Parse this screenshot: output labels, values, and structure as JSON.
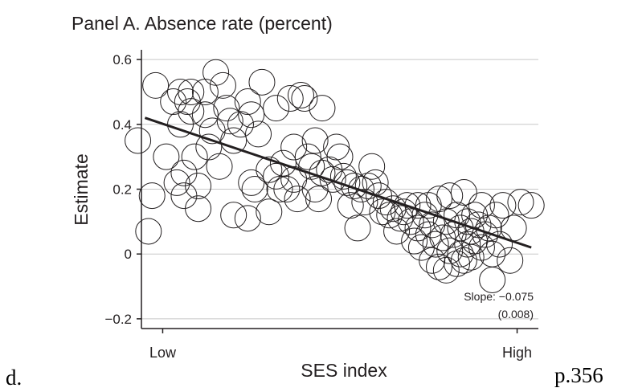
{
  "chart_data": {
    "type": "scatter",
    "title": "Panel A. Absence rate (percent)",
    "xlabel": "SES index",
    "ylabel": "Estimate",
    "x_tick_labels": [
      "Low",
      "High"
    ],
    "y_ticks": [
      -0.2,
      0,
      0.2,
      0.4,
      0.6
    ],
    "y_tick_labels": [
      "−0.2",
      "0",
      "0.2",
      "0.4",
      "0.6"
    ],
    "xlim": [
      -0.06,
      1.06
    ],
    "ylim": [
      -0.23,
      0.63
    ],
    "grid": true,
    "marker": "hollow-circle",
    "points": [
      [
        -0.07,
        0.35
      ],
      [
        -0.02,
        0.52
      ],
      [
        -0.03,
        0.18
      ],
      [
        -0.04,
        0.07
      ],
      [
        0.01,
        0.3
      ],
      [
        0.03,
        0.47
      ],
      [
        0.04,
        0.22
      ],
      [
        0.05,
        0.5
      ],
      [
        0.05,
        0.4
      ],
      [
        0.07,
        0.47
      ],
      [
        0.08,
        0.44
      ],
      [
        0.08,
        0.5
      ],
      [
        0.06,
        0.25
      ],
      [
        0.06,
        0.18
      ],
      [
        0.09,
        0.3
      ],
      [
        0.1,
        0.21
      ],
      [
        0.1,
        0.14
      ],
      [
        0.12,
        0.43
      ],
      [
        0.12,
        0.5
      ],
      [
        0.13,
        0.33
      ],
      [
        0.14,
        0.38
      ],
      [
        0.15,
        0.56
      ],
      [
        0.16,
        0.27
      ],
      [
        0.17,
        0.52
      ],
      [
        0.18,
        0.45
      ],
      [
        0.19,
        0.41
      ],
      [
        0.2,
        0.35
      ],
      [
        0.2,
        0.12
      ],
      [
        0.22,
        0.4
      ],
      [
        0.24,
        0.47
      ],
      [
        0.24,
        0.11
      ],
      [
        0.25,
        0.43
      ],
      [
        0.25,
        0.22
      ],
      [
        0.26,
        0.2
      ],
      [
        0.27,
        0.37
      ],
      [
        0.28,
        0.53
      ],
      [
        0.3,
        0.26
      ],
      [
        0.3,
        0.13
      ],
      [
        0.32,
        0.45
      ],
      [
        0.32,
        0.24
      ],
      [
        0.33,
        0.2
      ],
      [
        0.34,
        0.28
      ],
      [
        0.35,
        0.2
      ],
      [
        0.36,
        0.48
      ],
      [
        0.37,
        0.33
      ],
      [
        0.37,
        0.23
      ],
      [
        0.38,
        0.17
      ],
      [
        0.39,
        0.49
      ],
      [
        0.4,
        0.48
      ],
      [
        0.41,
        0.3
      ],
      [
        0.42,
        0.27
      ],
      [
        0.43,
        0.35
      ],
      [
        0.43,
        0.2
      ],
      [
        0.44,
        0.17
      ],
      [
        0.45,
        0.25
      ],
      [
        0.45,
        0.45
      ],
      [
        0.47,
        0.26
      ],
      [
        0.48,
        0.23
      ],
      [
        0.49,
        0.33
      ],
      [
        0.5,
        0.3
      ],
      [
        0.51,
        0.24
      ],
      [
        0.52,
        0.22
      ],
      [
        0.53,
        0.15
      ],
      [
        0.54,
        0.21
      ],
      [
        0.55,
        0.08
      ],
      [
        0.56,
        0.2
      ],
      [
        0.57,
        0.16
      ],
      [
        0.58,
        0.21
      ],
      [
        0.59,
        0.27
      ],
      [
        0.6,
        0.22
      ],
      [
        0.61,
        0.18
      ],
      [
        0.62,
        0.13
      ],
      [
        0.63,
        0.16
      ],
      [
        0.64,
        0.12
      ],
      [
        0.65,
        0.14
      ],
      [
        0.66,
        0.07
      ],
      [
        0.67,
        0.11
      ],
      [
        0.68,
        0.13
      ],
      [
        0.69,
        0.15
      ],
      [
        0.7,
        0.1
      ],
      [
        0.71,
        0.04
      ],
      [
        0.72,
        0.15
      ],
      [
        0.72,
        0.08
      ],
      [
        0.73,
        0.02
      ],
      [
        0.74,
        0.12
      ],
      [
        0.75,
        0.06
      ],
      [
        0.75,
        0.15
      ],
      [
        0.76,
        0.09
      ],
      [
        0.76,
        -0.02
      ],
      [
        0.77,
        0.03
      ],
      [
        0.78,
        0.17
      ],
      [
        0.78,
        -0.04
      ],
      [
        0.79,
        0.05
      ],
      [
        0.8,
        0.1
      ],
      [
        0.8,
        -0.05
      ],
      [
        0.81,
        0.18
      ],
      [
        0.81,
        0.01
      ],
      [
        0.82,
        0.06
      ],
      [
        0.83,
        0.12
      ],
      [
        0.83,
        -0.03
      ],
      [
        0.84,
        0.08
      ],
      [
        0.84,
        0.0
      ],
      [
        0.85,
        0.19
      ],
      [
        0.85,
        -0.02
      ],
      [
        0.86,
        0.1
      ],
      [
        0.86,
        0.03
      ],
      [
        0.87,
        0.07
      ],
      [
        0.87,
        -0.01
      ],
      [
        0.88,
        0.04
      ],
      [
        0.88,
        0.12
      ],
      [
        0.89,
        0.09
      ],
      [
        0.9,
        0.02
      ],
      [
        0.9,
        0.15
      ],
      [
        0.91,
        0.06
      ],
      [
        0.92,
        0.08
      ],
      [
        0.93,
        0.0
      ],
      [
        0.93,
        -0.08
      ],
      [
        0.94,
        0.12
      ],
      [
        0.95,
        0.03
      ],
      [
        0.96,
        0.15
      ],
      [
        0.98,
        -0.02
      ],
      [
        0.99,
        0.08
      ],
      [
        1.01,
        0.16
      ],
      [
        1.04,
        0.15
      ]
    ],
    "fit_line": {
      "x": [
        -0.05,
        1.04
      ],
      "y": [
        0.42,
        0.02
      ]
    },
    "annotation": {
      "slope": "Slope: −0.075",
      "se": "(0.008)"
    }
  },
  "page_labels": {
    "left_tag": "d.",
    "right_tag": "p.356"
  }
}
